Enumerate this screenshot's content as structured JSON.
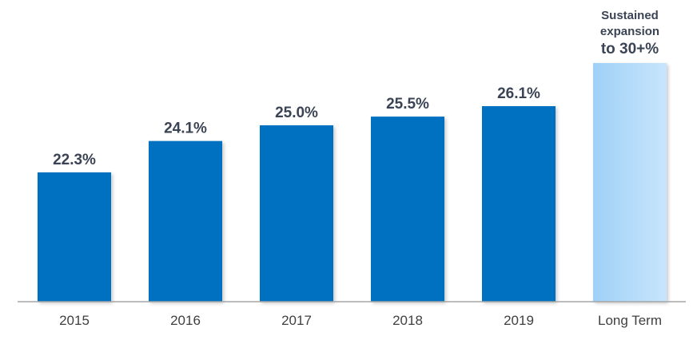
{
  "chart_data": {
    "type": "bar",
    "categories": [
      "2015",
      "2016",
      "2017",
      "2018",
      "2019",
      "Long Term"
    ],
    "values": [
      22.3,
      24.1,
      25.0,
      25.5,
      26.1,
      30
    ],
    "data_labels": [
      "22.3%",
      "24.1%",
      "25.0%",
      "25.5%",
      "26.1%",
      ""
    ],
    "long_term_annotation": [
      "Sustained",
      "expansion",
      "to 30+%"
    ],
    "title": "",
    "xlabel": "",
    "ylabel": "",
    "y_axis_visible": false,
    "grid": false,
    "legend": false,
    "colors": {
      "bar": "#0070c0",
      "long_term_bar_gradient": [
        "#9fd0f7",
        "#c8e5fc"
      ],
      "label_text": "#3b4454",
      "tick_text": "#404040",
      "baseline": "#a6a6a6"
    }
  }
}
